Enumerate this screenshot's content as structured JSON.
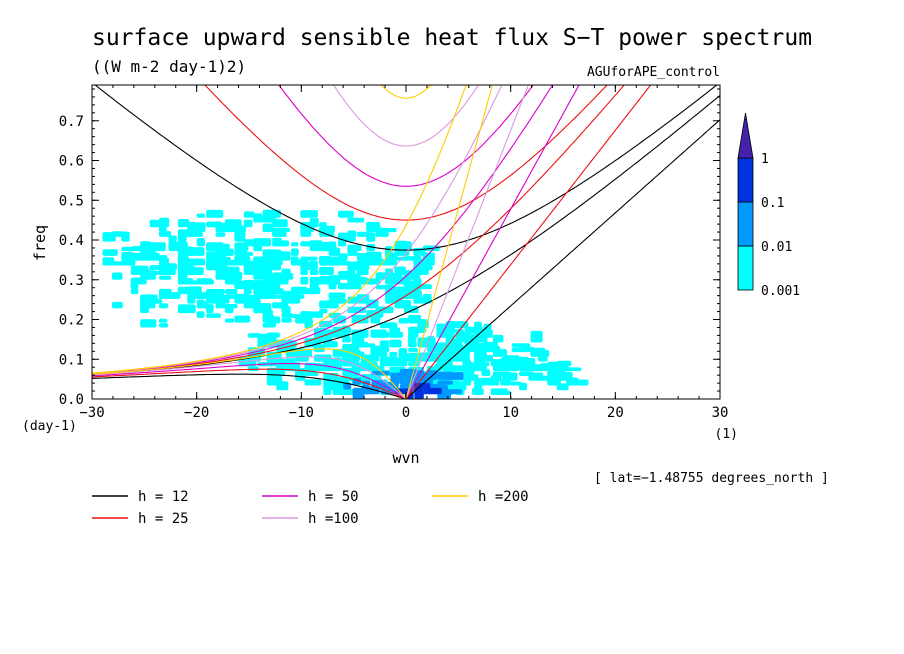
{
  "chart_data": {
    "type": "heatmap",
    "title": "surface upward sensible heat flux S−T power spectrum",
    "subtitle": "((W m-2 day-1)2)",
    "run_label": "AGUforAPE_control",
    "xlabel": "wvn",
    "ylabel": "freq",
    "x_unit": "(1)",
    "y_unit": "(day-1)",
    "xlim": [
      -30,
      30
    ],
    "ylim": [
      0,
      0.79
    ],
    "x_ticks": [
      -30,
      -20,
      -10,
      0,
      10,
      20,
      30
    ],
    "x_tick_labels": [
      "−30",
      "−20",
      "−10",
      "0",
      "10",
      "20",
      "30"
    ],
    "y_ticks": [
      0.0,
      0.1,
      0.2,
      0.3,
      0.4,
      0.5,
      0.6,
      0.7
    ],
    "y_tick_labels": [
      "0.0",
      "0.1",
      "0.2",
      "0.3",
      "0.4",
      "0.5",
      "0.6",
      "0.7"
    ],
    "footnote": "[ lat=−1.48755 degrees_north ]",
    "colorbar": {
      "levels": [
        "0.001",
        "0.01",
        "0.1",
        "1"
      ],
      "colors": [
        "#00ffff",
        "#0099ff",
        "#0033dd",
        "#4422aa"
      ]
    },
    "dispersion_curves": [
      {
        "name": "h = 12",
        "h": 12,
        "color": "#000000"
      },
      {
        "name": "h = 25",
        "h": 25,
        "color": "#ee1111"
      },
      {
        "name": "h = 50",
        "h": 50,
        "color": "#dd00cc"
      },
      {
        "name": "h =100",
        "h": 100,
        "color": "#dd99dd"
      },
      {
        "name": "h =200",
        "h": 200,
        "color": "#ffcc00"
      }
    ],
    "power_regions": [
      {
        "level": "0.001",
        "x": [
          -29,
          2
        ],
        "y": [
          0.18,
          0.46
        ]
      },
      {
        "level": "0.001",
        "x": [
          -16,
          13
        ],
        "y": [
          0.01,
          0.2
        ]
      },
      {
        "level": "0.001",
        "x": [
          0,
          17
        ],
        "y": [
          0.01,
          0.1
        ]
      },
      {
        "level": "0.01",
        "x": [
          -6,
          4
        ],
        "y": [
          0.0,
          0.06
        ]
      },
      {
        "level": "0.1",
        "x": [
          -1,
          2
        ],
        "y": [
          0.0,
          0.03
        ]
      }
    ]
  }
}
